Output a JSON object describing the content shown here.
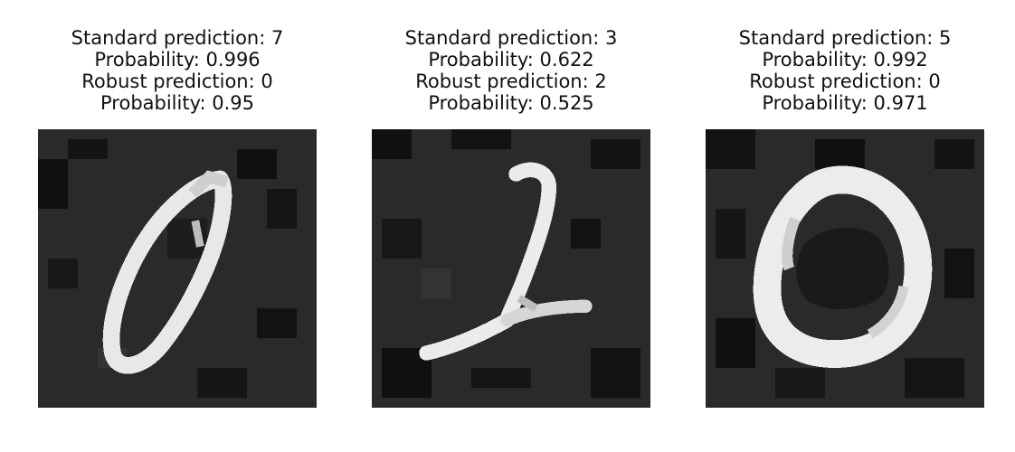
{
  "panels": [
    {
      "standard_prediction": "Standard prediction: 7",
      "standard_probability": "Probability: 0.996",
      "robust_prediction": "Robust prediction: 0",
      "robust_probability": "Probability: 0.95",
      "image_label": "handwritten digit 0"
    },
    {
      "standard_prediction": "Standard prediction: 3",
      "standard_probability": "Probability: 0.622",
      "robust_prediction": "Robust prediction: 2",
      "robust_probability": "Probability: 0.525",
      "image_label": "handwritten digit 2"
    },
    {
      "standard_prediction": "Standard prediction: 5",
      "standard_probability": "Probability: 0.992",
      "robust_prediction": "Robust prediction: 0",
      "robust_probability": "Probability: 0.971",
      "image_label": "handwritten digit 0"
    }
  ],
  "colors": {
    "background": "#ffffff",
    "text": "#111111",
    "image_background": "#262626",
    "stroke": "#f2f2f2"
  }
}
